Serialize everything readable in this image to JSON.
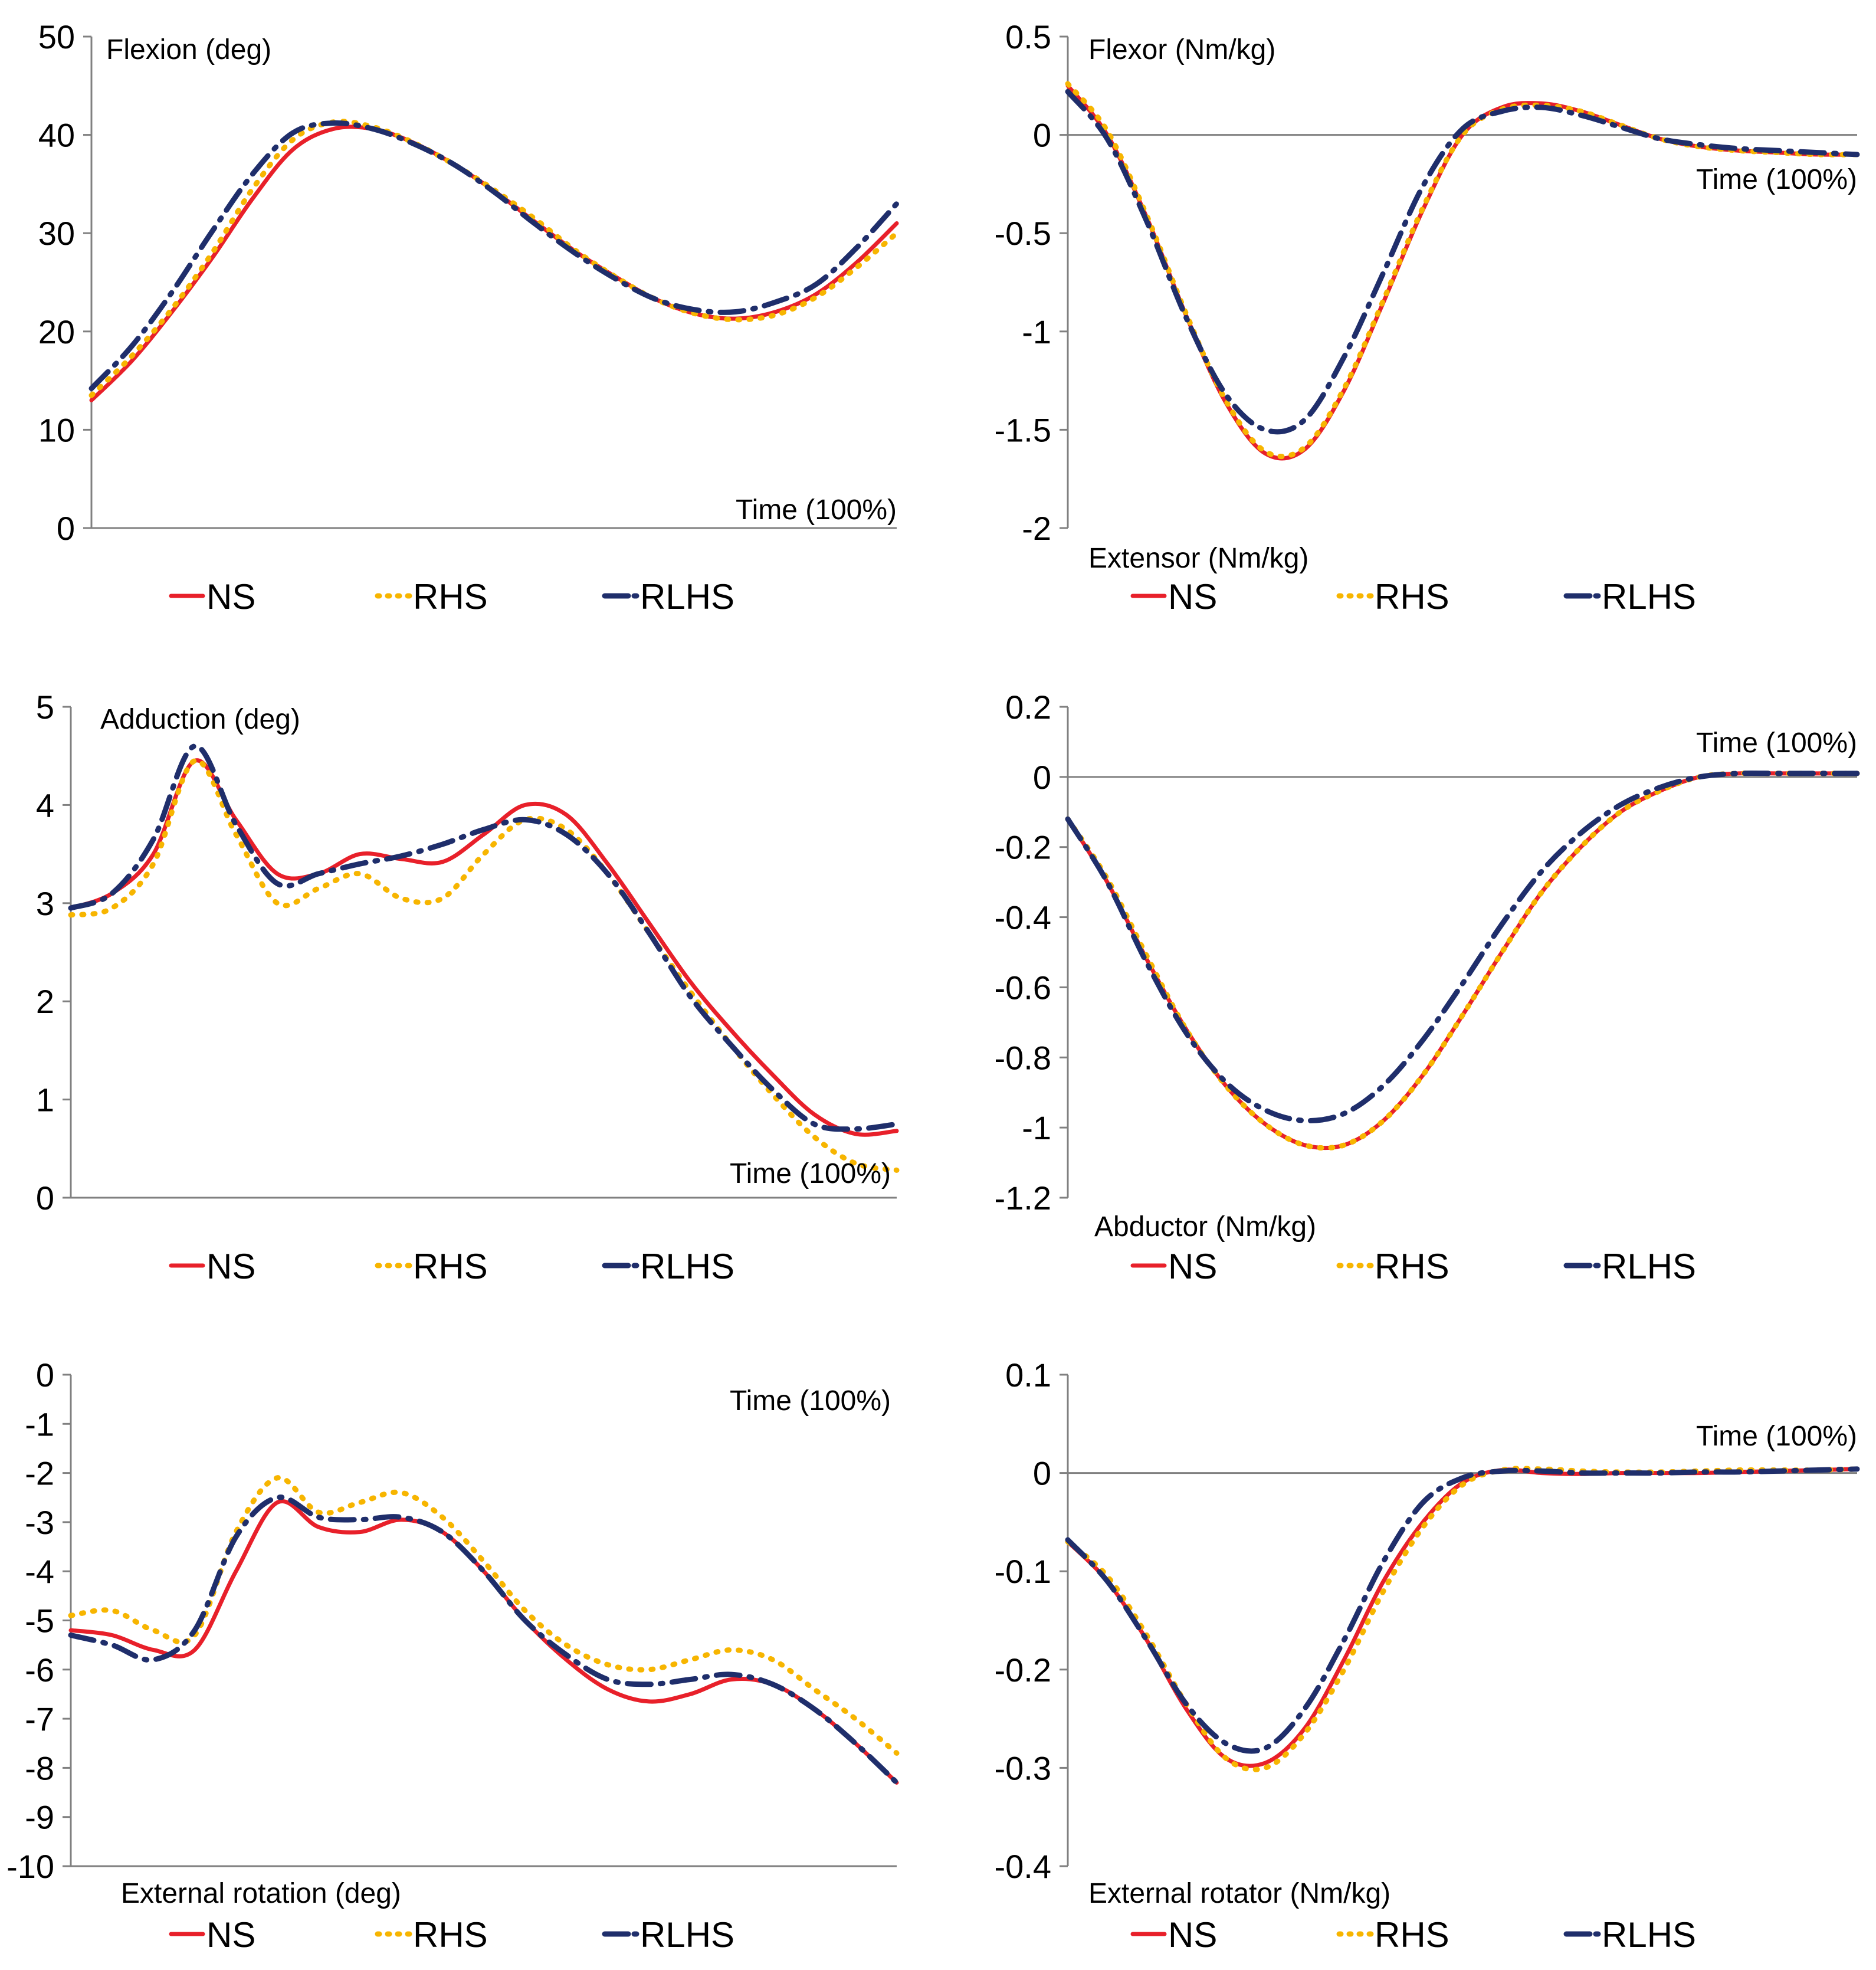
{
  "colors": {
    "NS": "#e8202a",
    "RHS": "#f7b500",
    "RLHS": "#1f2e6b",
    "axis": "#808080",
    "zero": "#808080"
  },
  "legend": [
    "NS",
    "RHS",
    "RLHS"
  ],
  "chart_data": [
    {
      "type": "line",
      "id": "hip-flexion-angle",
      "ylim": [
        0,
        50
      ],
      "yticks": [
        0,
        10,
        20,
        30,
        40,
        50
      ],
      "xlim": [
        0,
        100
      ],
      "zero_line": false,
      "annotations": {
        "top": "Flexion (deg)",
        "time": "Time (100%)",
        "bottom": ""
      },
      "series": [
        {
          "name": "NS",
          "x": [
            0,
            5,
            10,
            15,
            20,
            25,
            30,
            35,
            40,
            45,
            50,
            55,
            60,
            65,
            70,
            75,
            80,
            85,
            90,
            95,
            100
          ],
          "values": [
            13,
            17,
            22,
            27.5,
            33.5,
            38.5,
            40.6,
            40.6,
            39.2,
            37,
            34.3,
            31.2,
            28.2,
            25.6,
            23.3,
            21.8,
            21.3,
            22,
            23.8,
            27,
            31
          ]
        },
        {
          "name": "RHS",
          "x": [
            0,
            5,
            10,
            15,
            20,
            25,
            30,
            35,
            40,
            45,
            50,
            55,
            60,
            65,
            70,
            75,
            80,
            85,
            90,
            95,
            100
          ],
          "values": [
            13.5,
            17.5,
            22.3,
            28,
            34.5,
            39.5,
            41.3,
            40.8,
            39.2,
            37,
            34.4,
            31.5,
            28.3,
            25.6,
            23.3,
            21.8,
            21.2,
            21.7,
            23.5,
            26.5,
            30
          ]
        },
        {
          "name": "RLHS",
          "x": [
            0,
            5,
            10,
            15,
            20,
            25,
            30,
            35,
            40,
            45,
            50,
            55,
            60,
            65,
            70,
            75,
            80,
            85,
            90,
            95,
            100
          ],
          "values": [
            14.2,
            18.5,
            24,
            30.2,
            36,
            40.2,
            41.2,
            40.6,
            39.1,
            37,
            34.2,
            31,
            28,
            25.4,
            23.3,
            22.2,
            22,
            23,
            24.8,
            28.5,
            33
          ]
        }
      ]
    },
    {
      "type": "line",
      "id": "hip-flexor-moment",
      "ylim": [
        -2,
        0.5
      ],
      "yticks": [
        0.5,
        0,
        -0.5,
        -1,
        -1.5,
        -2
      ],
      "xlim": [
        0,
        100
      ],
      "zero_line": true,
      "annotations": {
        "top": "Flexor (Nm/kg)",
        "time": "Time (100%)",
        "bottom": "Extensor (Nm/kg)"
      },
      "series": [
        {
          "name": "NS",
          "x": [
            0,
            5,
            10,
            15,
            20,
            25,
            30,
            35,
            40,
            45,
            50,
            55,
            60,
            65,
            70,
            75,
            80,
            85,
            90,
            95,
            100
          ],
          "values": [
            0.25,
            0,
            -0.42,
            -0.92,
            -1.36,
            -1.62,
            -1.6,
            -1.3,
            -0.85,
            -0.38,
            0,
            0.14,
            0.16,
            0.12,
            0.05,
            -0.02,
            -0.06,
            -0.08,
            -0.09,
            -0.1,
            -0.1
          ]
        },
        {
          "name": "RHS",
          "x": [
            0,
            5,
            10,
            15,
            20,
            25,
            30,
            35,
            40,
            45,
            50,
            55,
            60,
            65,
            70,
            75,
            80,
            85,
            90,
            95,
            100
          ],
          "values": [
            0.26,
            0.02,
            -0.41,
            -0.91,
            -1.35,
            -1.61,
            -1.59,
            -1.29,
            -0.84,
            -0.37,
            0,
            0.13,
            0.15,
            0.12,
            0.05,
            -0.02,
            -0.06,
            -0.08,
            -0.09,
            -0.1,
            -0.1
          ]
        },
        {
          "name": "RLHS",
          "x": [
            0,
            5,
            10,
            15,
            20,
            25,
            30,
            35,
            40,
            45,
            50,
            55,
            60,
            65,
            70,
            75,
            80,
            85,
            90,
            95,
            100
          ],
          "values": [
            0.22,
            -0.02,
            -0.44,
            -0.93,
            -1.32,
            -1.5,
            -1.45,
            -1.13,
            -0.7,
            -0.26,
            0.03,
            0.12,
            0.14,
            0.1,
            0.04,
            -0.02,
            -0.05,
            -0.07,
            -0.08,
            -0.09,
            -0.1
          ]
        }
      ]
    },
    {
      "type": "line",
      "id": "hip-adduction-angle",
      "ylim": [
        0,
        5
      ],
      "yticks": [
        0,
        1,
        2,
        3,
        4,
        5
      ],
      "xlim": [
        0,
        100
      ],
      "zero_line": false,
      "annotations": {
        "top": "Adduction (deg)",
        "time": "Time (100%)",
        "bottom": ""
      },
      "series": [
        {
          "name": "NS",
          "x": [
            0,
            5,
            10,
            15,
            20,
            25,
            30,
            35,
            40,
            45,
            50,
            55,
            60,
            65,
            70,
            75,
            80,
            85,
            90,
            95,
            100
          ],
          "values": [
            2.95,
            3.1,
            3.5,
            4.45,
            3.85,
            3.3,
            3.3,
            3.5,
            3.45,
            3.42,
            3.7,
            4.0,
            3.9,
            3.4,
            2.8,
            2.2,
            1.7,
            1.25,
            0.85,
            0.65,
            0.68
          ]
        },
        {
          "name": "RHS",
          "x": [
            0,
            5,
            10,
            15,
            20,
            25,
            30,
            35,
            40,
            45,
            50,
            55,
            60,
            65,
            70,
            75,
            80,
            85,
            90,
            95,
            100
          ],
          "values": [
            2.88,
            2.95,
            3.4,
            4.45,
            3.7,
            3.0,
            3.15,
            3.3,
            3.05,
            3.05,
            3.5,
            3.85,
            3.75,
            3.3,
            2.7,
            2.1,
            1.55,
            1.05,
            0.62,
            0.35,
            0.28
          ]
        },
        {
          "name": "RLHS",
          "x": [
            0,
            5,
            10,
            15,
            20,
            25,
            30,
            35,
            40,
            45,
            50,
            55,
            60,
            65,
            70,
            75,
            80,
            85,
            90,
            95,
            100
          ],
          "values": [
            2.95,
            3.1,
            3.65,
            4.6,
            3.8,
            3.2,
            3.3,
            3.4,
            3.48,
            3.6,
            3.75,
            3.85,
            3.7,
            3.3,
            2.7,
            2.05,
            1.55,
            1.1,
            0.75,
            0.7,
            0.75
          ]
        }
      ]
    },
    {
      "type": "line",
      "id": "hip-abductor-moment",
      "ylim": [
        -1.2,
        0.2
      ],
      "yticks": [
        0.2,
        0,
        -0.2,
        -0.4,
        -0.6,
        -0.8,
        -1,
        -1.2
      ],
      "xlim": [
        0,
        100
      ],
      "zero_line": true,
      "annotations": {
        "top": "",
        "time": "Time (100%)",
        "bottom": "Abductor (Nm/kg)"
      },
      "series": [
        {
          "name": "NS",
          "x": [
            0,
            5,
            10,
            15,
            20,
            25,
            30,
            35,
            40,
            45,
            50,
            55,
            60,
            65,
            70,
            75,
            80,
            85,
            90,
            95,
            100
          ],
          "values": [
            -0.12,
            -0.3,
            -0.52,
            -0.72,
            -0.88,
            -0.99,
            -1.05,
            -1.05,
            -0.98,
            -0.85,
            -0.68,
            -0.5,
            -0.33,
            -0.2,
            -0.1,
            -0.04,
            0,
            0.01,
            0.01,
            0.01,
            0.01
          ]
        },
        {
          "name": "RHS",
          "x": [
            0,
            5,
            10,
            15,
            20,
            25,
            30,
            35,
            40,
            45,
            50,
            55,
            60,
            65,
            70,
            75,
            80,
            85,
            90,
            95,
            100
          ],
          "values": [
            -0.12,
            -0.29,
            -0.51,
            -0.72,
            -0.88,
            -0.99,
            -1.05,
            -1.05,
            -0.98,
            -0.85,
            -0.68,
            -0.5,
            -0.33,
            -0.2,
            -0.1,
            -0.04,
            0,
            0.01,
            0.01,
            0.01,
            0.01
          ]
        },
        {
          "name": "RLHS",
          "x": [
            0,
            5,
            10,
            15,
            20,
            25,
            30,
            35,
            40,
            45,
            50,
            55,
            60,
            65,
            70,
            75,
            80,
            85,
            90,
            95,
            100
          ],
          "values": [
            -0.12,
            -0.3,
            -0.53,
            -0.73,
            -0.87,
            -0.95,
            -0.98,
            -0.96,
            -0.88,
            -0.75,
            -0.59,
            -0.42,
            -0.27,
            -0.16,
            -0.08,
            -0.03,
            0,
            0.01,
            0.01,
            0.01,
            0.01
          ]
        }
      ]
    },
    {
      "type": "line",
      "id": "hip-external-rotation-angle",
      "ylim": [
        -10,
        0
      ],
      "yticks": [
        0,
        -1,
        -2,
        -3,
        -4,
        -5,
        -6,
        -7,
        -8,
        -9,
        -10
      ],
      "xlim": [
        0,
        100
      ],
      "zero_line": false,
      "annotations": {
        "top": "",
        "time": "Time (100%)",
        "bottom": "External rotation (deg)"
      },
      "series": [
        {
          "name": "NS",
          "x": [
            0,
            5,
            10,
            15,
            20,
            25,
            30,
            35,
            40,
            45,
            50,
            55,
            60,
            65,
            70,
            75,
            80,
            85,
            90,
            95,
            100
          ],
          "values": [
            -5.2,
            -5.3,
            -5.6,
            -5.6,
            -4,
            -2.6,
            -3.1,
            -3.2,
            -2.95,
            -3.2,
            -4,
            -5,
            -5.8,
            -6.4,
            -6.65,
            -6.5,
            -6.2,
            -6.3,
            -6.8,
            -7.5,
            -8.3
          ]
        },
        {
          "name": "RHS",
          "x": [
            0,
            5,
            10,
            15,
            20,
            25,
            30,
            35,
            40,
            45,
            50,
            55,
            60,
            65,
            70,
            75,
            80,
            85,
            90,
            95,
            100
          ],
          "values": [
            -4.9,
            -4.8,
            -5.2,
            -5.3,
            -3.2,
            -2.1,
            -2.8,
            -2.6,
            -2.4,
            -2.9,
            -3.8,
            -4.8,
            -5.5,
            -5.9,
            -6.0,
            -5.8,
            -5.6,
            -5.8,
            -6.4,
            -7,
            -7.7
          ]
        },
        {
          "name": "RLHS",
          "x": [
            0,
            5,
            10,
            15,
            20,
            25,
            30,
            35,
            40,
            45,
            50,
            55,
            60,
            65,
            70,
            75,
            80,
            85,
            90,
            95,
            100
          ],
          "values": [
            -5.3,
            -5.5,
            -5.8,
            -5.2,
            -3.3,
            -2.5,
            -2.9,
            -2.95,
            -2.9,
            -3.2,
            -4,
            -5,
            -5.7,
            -6.2,
            -6.3,
            -6.2,
            -6.1,
            -6.3,
            -6.8,
            -7.5,
            -8.3
          ]
        }
      ]
    },
    {
      "type": "line",
      "id": "hip-external-rotator-moment",
      "ylim": [
        -0.4,
        0.1
      ],
      "yticks": [
        0.1,
        0,
        -0.1,
        -0.2,
        -0.3,
        -0.4
      ],
      "xlim": [
        0,
        100
      ],
      "zero_line": true,
      "annotations": {
        "top": "",
        "time": "Time (100%)",
        "bottom": "External rotator (Nm/kg)"
      },
      "series": [
        {
          "name": "NS",
          "x": [
            0,
            5,
            10,
            15,
            20,
            25,
            30,
            35,
            40,
            45,
            50,
            55,
            60,
            65,
            70,
            75,
            80,
            85,
            90,
            95,
            100
          ],
          "values": [
            -0.07,
            -0.11,
            -0.17,
            -0.24,
            -0.29,
            -0.295,
            -0.26,
            -0.19,
            -0.11,
            -0.05,
            -0.01,
            0.003,
            0,
            -0.001,
            0,
            0,
            0,
            0.001,
            0.002,
            0.003,
            0.004
          ]
        },
        {
          "name": "RHS",
          "x": [
            0,
            5,
            10,
            15,
            20,
            25,
            30,
            35,
            40,
            45,
            50,
            55,
            60,
            65,
            70,
            75,
            80,
            85,
            90,
            95,
            100
          ],
          "values": [
            -0.07,
            -0.105,
            -0.165,
            -0.235,
            -0.29,
            -0.3,
            -0.265,
            -0.2,
            -0.12,
            -0.055,
            -0.012,
            0.003,
            0.004,
            0.002,
            0.001,
            0.001,
            0.002,
            0.003,
            0.003,
            0.003,
            0.004
          ]
        },
        {
          "name": "RLHS",
          "x": [
            0,
            5,
            10,
            15,
            20,
            25,
            30,
            35,
            40,
            45,
            50,
            55,
            60,
            65,
            70,
            75,
            80,
            85,
            90,
            95,
            100
          ],
          "values": [
            -0.068,
            -0.11,
            -0.17,
            -0.235,
            -0.275,
            -0.28,
            -0.24,
            -0.17,
            -0.09,
            -0.03,
            -0.005,
            0.002,
            0.002,
            0,
            0,
            0,
            0.001,
            0.001,
            0.002,
            0.003,
            0.004
          ]
        }
      ]
    }
  ]
}
